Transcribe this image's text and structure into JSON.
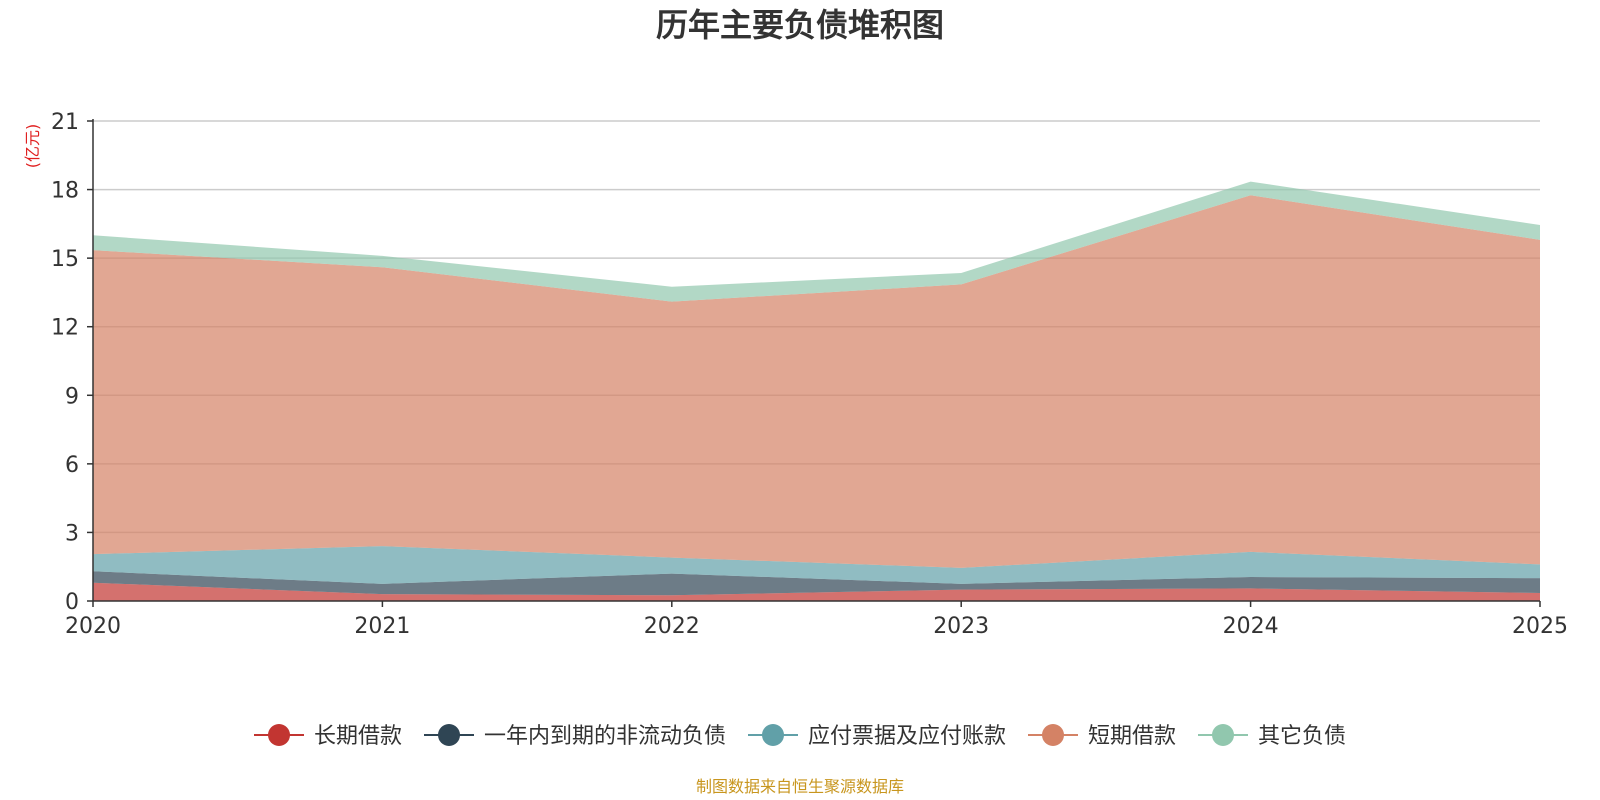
{
  "chart_data": {
    "type": "area",
    "stacked": true,
    "title": "历年主要负债堆积图",
    "unit_label": "(亿元)",
    "x": [
      "2020",
      "2021",
      "2022",
      "2023",
      "2024",
      "2025"
    ],
    "ylim": [
      0,
      21
    ],
    "yticks": [
      0,
      3,
      6,
      9,
      12,
      15,
      18,
      21
    ],
    "grid": true,
    "legend_position": "bottom",
    "series": [
      {
        "name": "长期借款",
        "color": "#c23531",
        "values": [
          0.8,
          0.3,
          0.25,
          0.5,
          0.55,
          0.35
        ]
      },
      {
        "name": "一年内到期的非流动负债",
        "color": "#2f4554",
        "values": [
          0.5,
          0.45,
          0.95,
          0.25,
          0.5,
          0.65
        ]
      },
      {
        "name": "应付票据及应付账款",
        "color": "#61a0a8",
        "values": [
          0.75,
          1.65,
          0.7,
          0.7,
          1.1,
          0.6
        ]
      },
      {
        "name": "短期借款",
        "color": "#d48265",
        "values": [
          13.3,
          12.2,
          11.2,
          12.4,
          15.6,
          14.2
        ]
      },
      {
        "name": "其它负债",
        "color": "#91c7ae",
        "values": [
          0.65,
          0.5,
          0.65,
          0.5,
          0.6,
          0.65
        ]
      }
    ]
  },
  "footer": {
    "source": "制图数据来自恒生聚源数据库"
  }
}
